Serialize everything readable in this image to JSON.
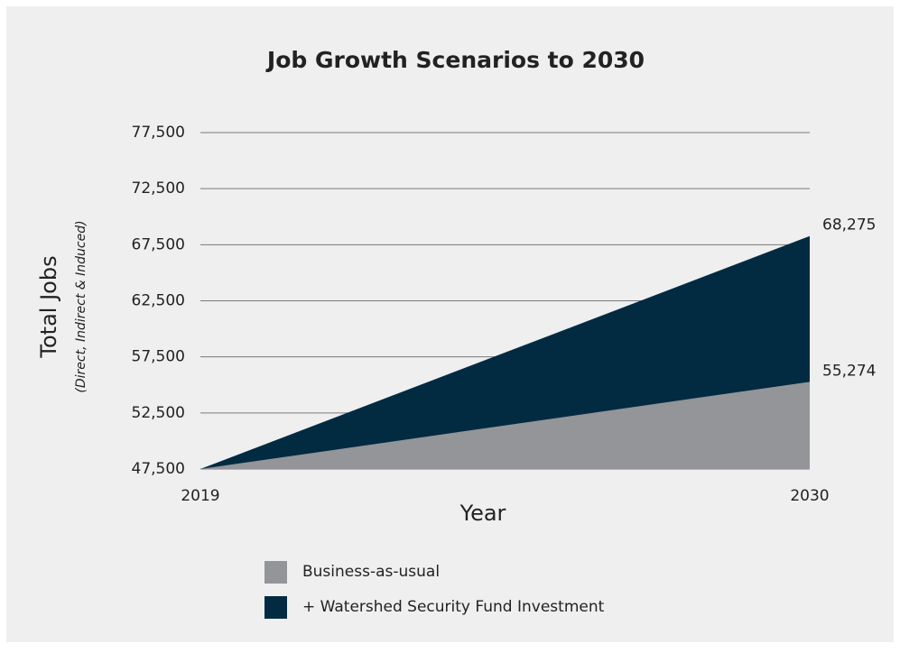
{
  "chart_data": {
    "type": "area",
    "title": "Job Growth Scenarios to 2030",
    "x_label": "Year",
    "y_label": "Total Jobs",
    "y_sublabel": "(Direct, Indirect & Induced)",
    "x": [
      2019,
      2030
    ],
    "xlim": [
      2019,
      2030
    ],
    "xticks": [
      2019,
      2030
    ],
    "ylim": [
      47500,
      77500
    ],
    "yticks": [
      {
        "value": 47500,
        "label": "47,500"
      },
      {
        "value": 52500,
        "label": "52,500"
      },
      {
        "value": 57500,
        "label": "57,500"
      },
      {
        "value": 62500,
        "label": "62,500"
      },
      {
        "value": 67500,
        "label": "67,500"
      },
      {
        "value": 72500,
        "label": "72,500"
      },
      {
        "value": 77500,
        "label": "77,500"
      }
    ],
    "grid": true,
    "series": [
      {
        "name": "Business-as-usual",
        "color": "#939598",
        "values": [
          47500,
          55274
        ],
        "value_labels": [
          null,
          "55,274"
        ]
      },
      {
        "name": "+ Watershed Security Fund Investment",
        "color": "#022b42",
        "values": [
          47500,
          68275
        ],
        "value_labels": [
          null,
          "68,275"
        ]
      }
    ]
  }
}
